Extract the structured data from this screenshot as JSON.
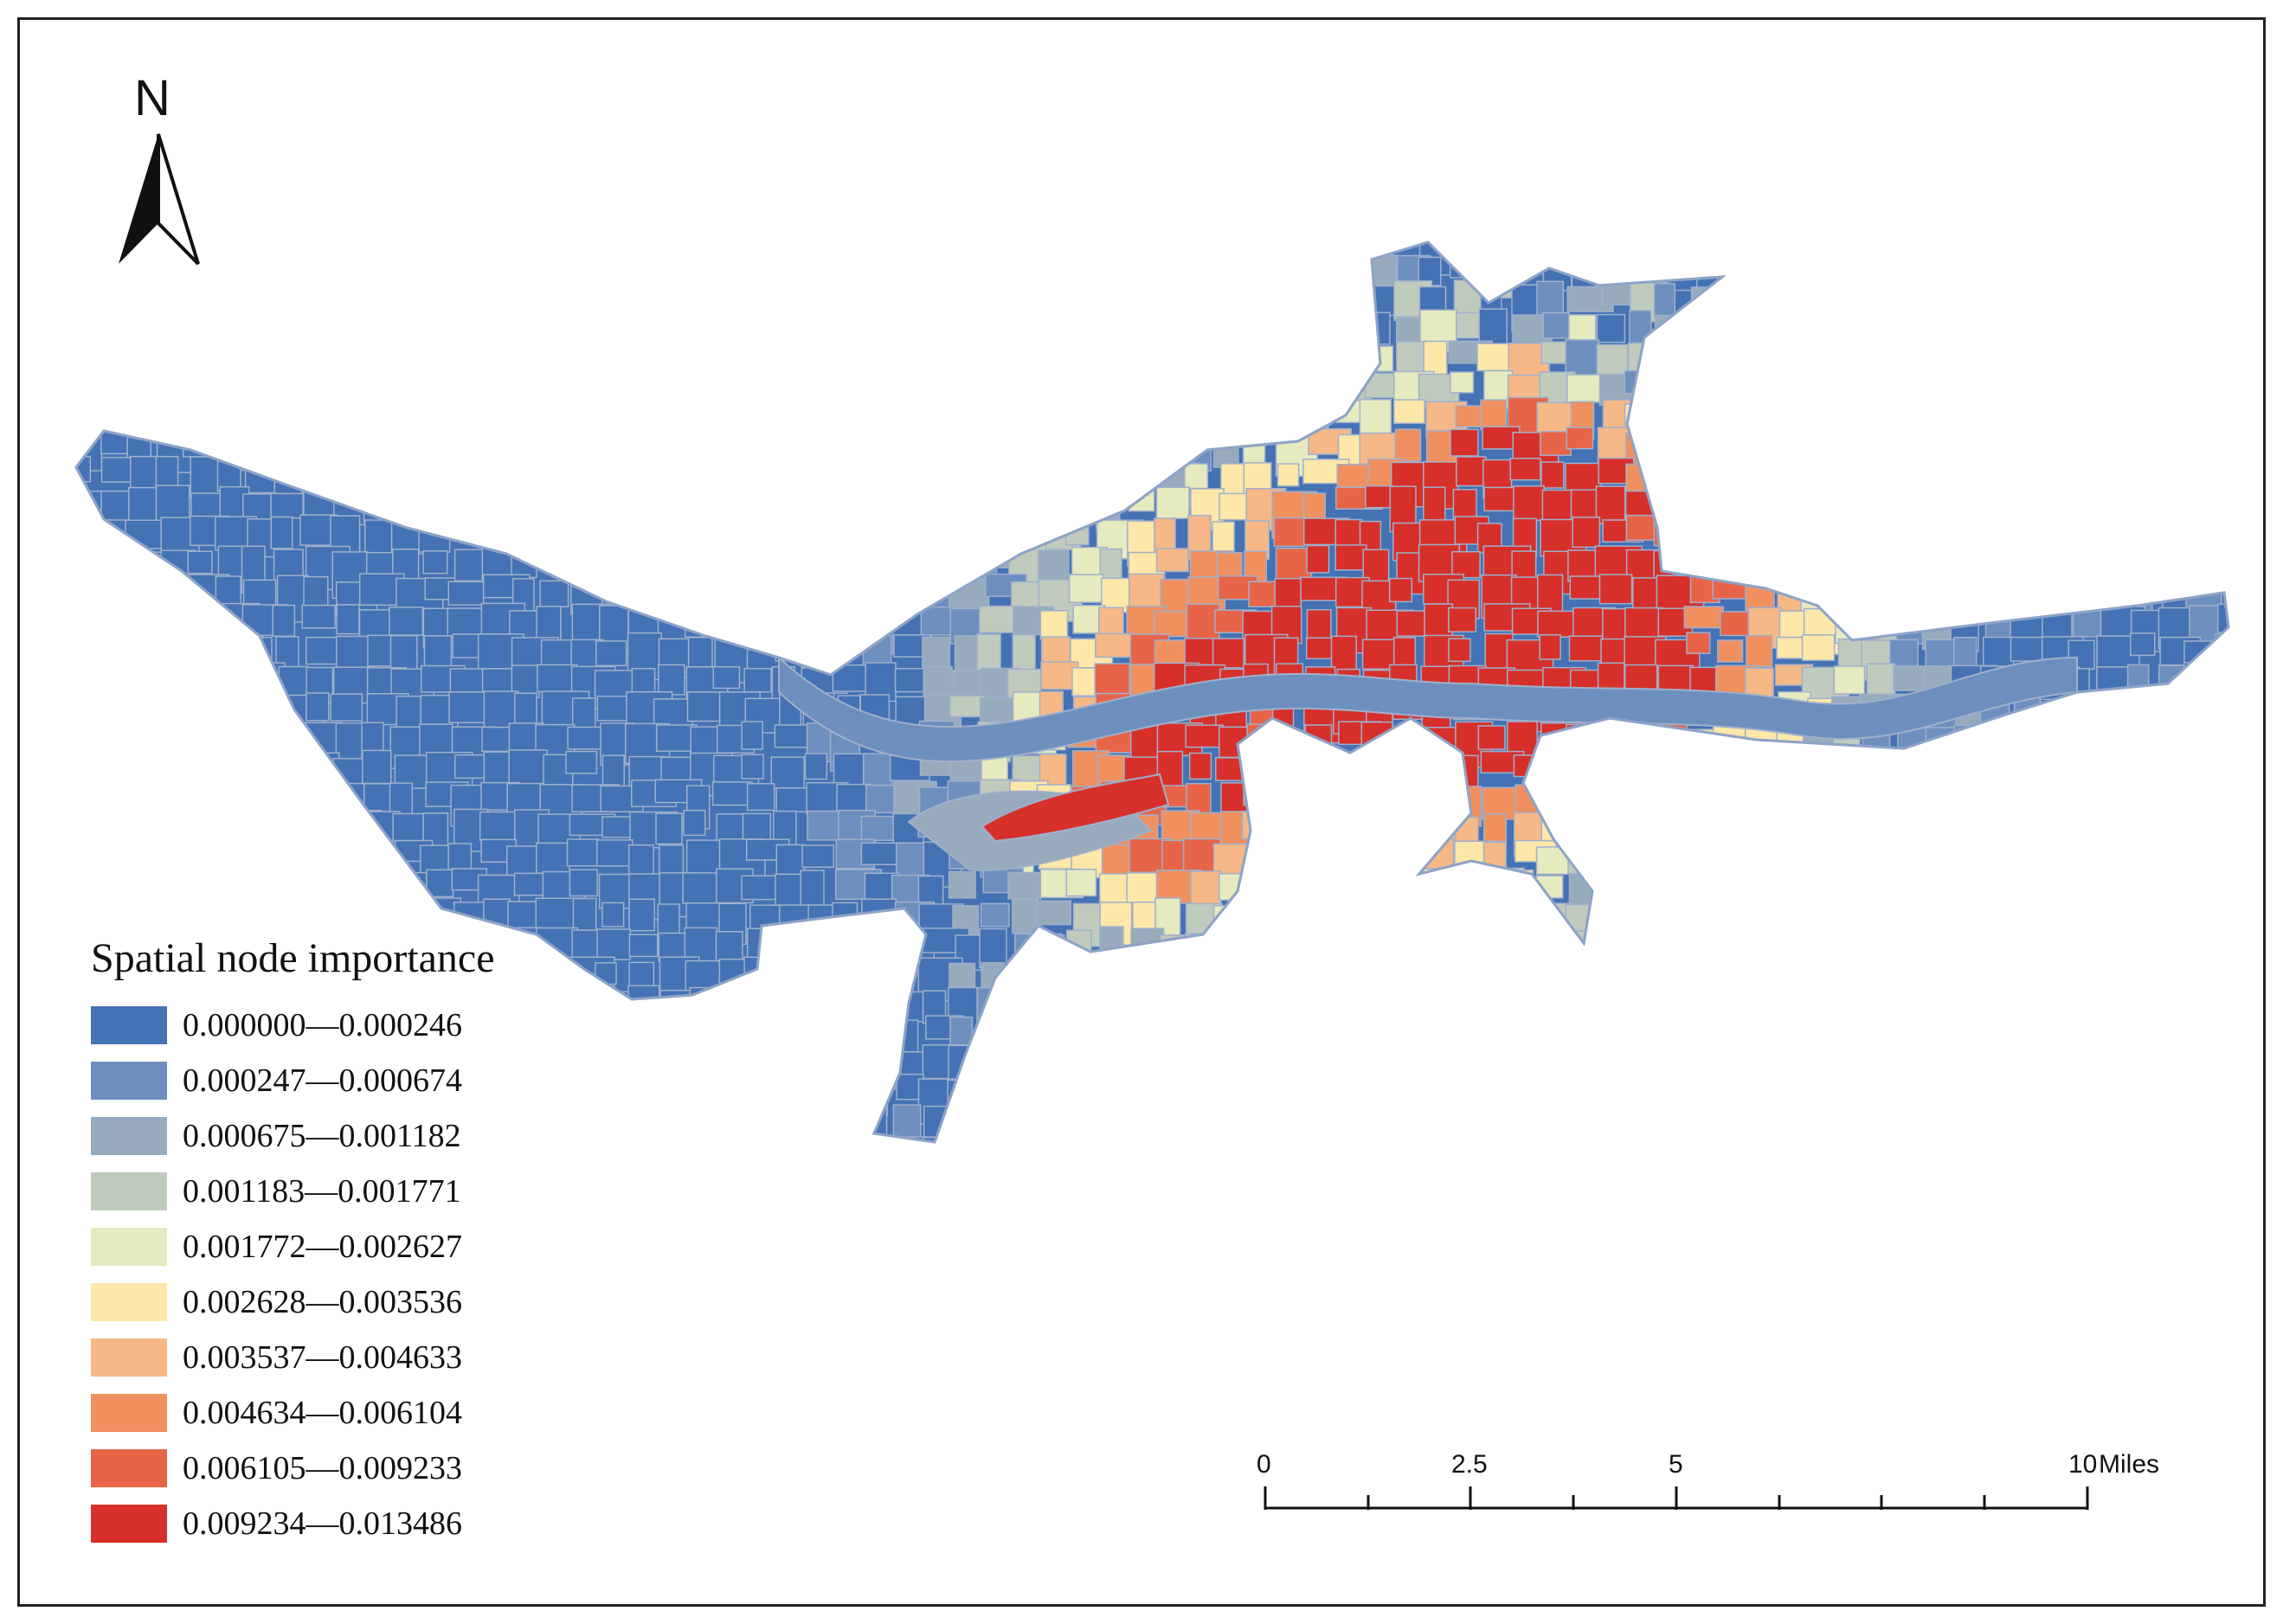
{
  "north_arrow": {
    "label": "N",
    "icon": "north-arrow-icon"
  },
  "legend": {
    "title": "Spatial node importance",
    "classes": [
      {
        "label": "0.000000—0.000246",
        "color": "#4472b4"
      },
      {
        "label": "0.000247—0.000674",
        "color": "#6d8fbd"
      },
      {
        "label": "0.000675—0.001182",
        "color": "#97abbc"
      },
      {
        "label": "0.001183—0.001771",
        "color": "#c0cbbd"
      },
      {
        "label": "0.001772—0.002627",
        "color": "#e6eabf"
      },
      {
        "label": "0.002628—0.003536",
        "color": "#fde7a9"
      },
      {
        "label": "0.003537—0.004633",
        "color": "#f6b886"
      },
      {
        "label": "0.004634—0.006104",
        "color": "#f0905f"
      },
      {
        "label": "0.006105—0.009233",
        "color": "#e86448"
      },
      {
        "label": "0.009234—0.013486",
        "color": "#d7302a"
      }
    ]
  },
  "scale_bar": {
    "labels": [
      "0",
      "2.5",
      "5",
      "10"
    ],
    "unit": "Miles"
  }
}
